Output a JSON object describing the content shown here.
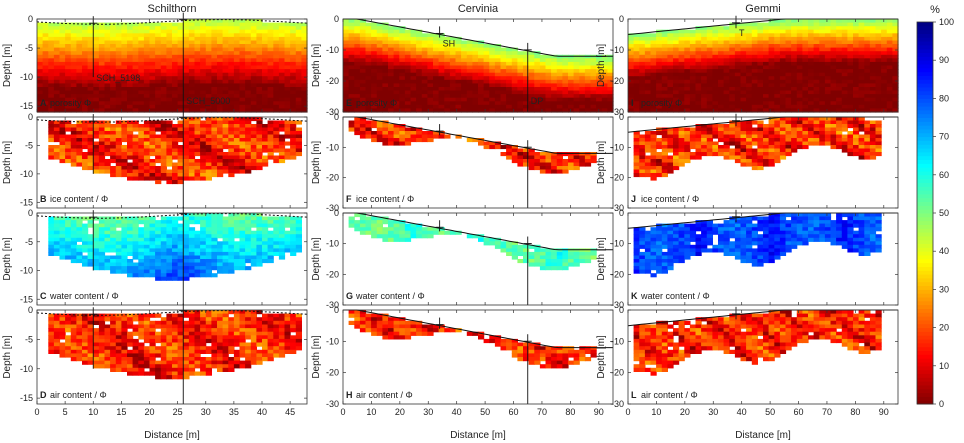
{
  "figure": {
    "type": "heatmap",
    "description_units": "percent",
    "sites": [
      {
        "id": "schilthorn",
        "name": "Schilthorn",
        "xlim": [
          0,
          48
        ],
        "xticks": [
          0,
          5,
          10,
          15,
          20,
          25,
          30,
          35,
          40,
          45
        ],
        "ylim": [
          -16,
          0
        ],
        "yticks": [
          0,
          -5,
          -10,
          -15
        ]
      },
      {
        "id": "cervinia",
        "name": "Cervinia",
        "xlim": [
          0,
          95
        ],
        "xticks": [
          0,
          10,
          20,
          30,
          40,
          50,
          60,
          70,
          80,
          90
        ],
        "ylim": [
          -30,
          0
        ],
        "yticks": [
          0,
          -10,
          -20,
          -30
        ]
      },
      {
        "id": "gemmi",
        "name": "Gemmi",
        "xlim": [
          0,
          95
        ],
        "xticks": [
          0,
          10,
          20,
          30,
          40,
          50,
          60,
          70,
          80,
          90
        ],
        "ylim": [
          -30,
          0
        ],
        "yticks": [
          0,
          -10,
          -20,
          -30
        ]
      }
    ],
    "rows": [
      {
        "quantity": "porosity",
        "labels": [
          {
            "letter": "A",
            "text": "porosity Φ"
          },
          {
            "letter": "E",
            "text": "porosity Φ"
          },
          {
            "letter": "I",
            "text": "porosity Φ"
          }
        ]
      },
      {
        "quantity": "ice",
        "labels": [
          {
            "letter": "B",
            "text": "ice content / Φ"
          },
          {
            "letter": "F",
            "text": "ice content / Φ"
          },
          {
            "letter": "J",
            "text": "ice content / Φ"
          }
        ]
      },
      {
        "quantity": "water",
        "labels": [
          {
            "letter": "C",
            "text": "water content / Φ"
          },
          {
            "letter": "G",
            "text": "water content / Φ"
          },
          {
            "letter": "K",
            "text": "water content / Φ"
          }
        ]
      },
      {
        "quantity": "air",
        "labels": [
          {
            "letter": "D",
            "text": "air content / Φ"
          },
          {
            "letter": "H",
            "text": "air content / Φ"
          },
          {
            "letter": "L",
            "text": "air content / Φ"
          }
        ]
      }
    ],
    "boreholes": [
      {
        "site": 0,
        "label": "SCH_5198",
        "x": 10,
        "depth": -10
      },
      {
        "site": 0,
        "label": "SCH_5000",
        "x": 26,
        "depth": -16
      },
      {
        "site": 1,
        "label": "SH",
        "x": 34,
        "depth": -6
      },
      {
        "site": 1,
        "label": "DP",
        "x": 65,
        "depth": -30
      },
      {
        "site": 2,
        "label": "T",
        "x": 38,
        "depth": -3
      }
    ],
    "ylabel": "Depth [m]",
    "xlabel": "Distance [m]",
    "colorbar": {
      "title": "%",
      "range": [
        0,
        100
      ],
      "ticks": [
        0,
        10,
        20,
        30,
        40,
        50,
        60,
        70,
        80,
        90,
        100
      ]
    }
  },
  "chart_data": {
    "type": "heatmap",
    "title": "",
    "xlabel": "Distance [m]",
    "ylabel": "Depth [m]",
    "colorbar_label": "%",
    "colorbar_range": [
      0,
      100
    ],
    "panels_mean_percent": {
      "porosity": {
        "Schilthorn": 25,
        "Cervinia": 20,
        "Gemmi": 20
      },
      "ice": {
        "Schilthorn": 20,
        "Cervinia": 20,
        "Gemmi": 15
      },
      "water": {
        "Schilthorn": 62,
        "Cervinia": 60,
        "Gemmi": 88
      },
      "air": {
        "Schilthorn": 12,
        "Cervinia": 14,
        "Gemmi": 15
      }
    }
  }
}
